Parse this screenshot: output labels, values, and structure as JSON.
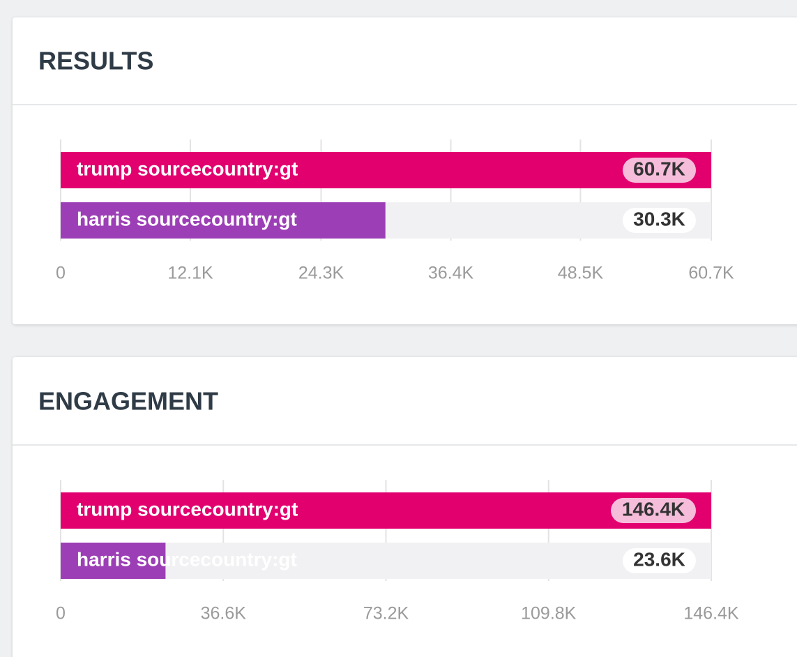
{
  "chart_data": [
    {
      "type": "bar",
      "orientation": "horizontal",
      "title": "RESULTS",
      "categories": [
        "trump sourcecountry:gt",
        "harris sourcecountry:gt"
      ],
      "values": [
        60700,
        30300
      ],
      "value_labels": [
        "60.7K",
        "30.3K"
      ],
      "colors": [
        "#e2006f",
        "#9c3fb6"
      ],
      "xlim": [
        0,
        60700
      ],
      "xticks": [
        0,
        {
          "value": 12100,
          "label": "12.1K"
        },
        {
          "value": 24300,
          "label": "24.3K"
        },
        {
          "value": 36400,
          "label": "36.4K"
        },
        {
          "value": 48500,
          "label": "48.5K"
        },
        {
          "value": 60700,
          "label": "60.7K"
        }
      ],
      "grid": true
    },
    {
      "type": "bar",
      "orientation": "horizontal",
      "title": "ENGAGEMENT",
      "categories": [
        "trump sourcecountry:gt",
        "harris sourcecountry:gt"
      ],
      "values": [
        146400,
        23600
      ],
      "value_labels": [
        "146.4K",
        "23.6K"
      ],
      "colors": [
        "#e2006f",
        "#9c3fb6"
      ],
      "xlim": [
        0,
        146400
      ],
      "xticks": [
        0,
        {
          "value": 36600,
          "label": "36.6K"
        },
        {
          "value": 73200,
          "label": "73.2K"
        },
        {
          "value": 109800,
          "label": "109.8K"
        },
        {
          "value": 146400,
          "label": "146.4K"
        }
      ],
      "grid": true
    }
  ]
}
